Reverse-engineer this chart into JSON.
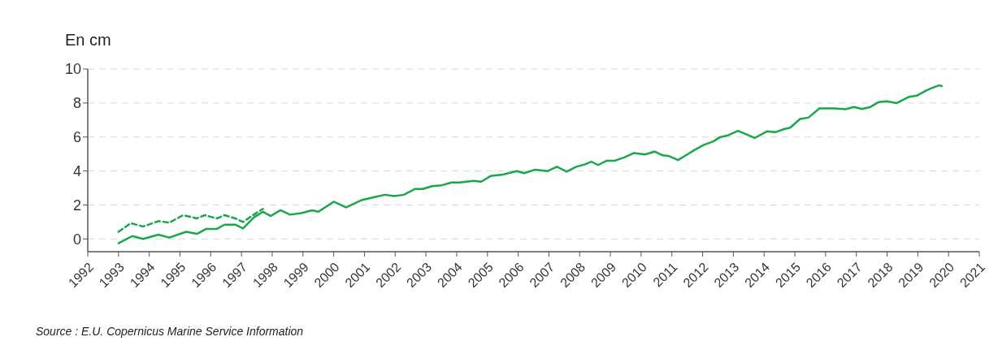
{
  "chart_data": {
    "type": "line",
    "ylabel": "En cm",
    "annotations": [
      "Source : E.U. Copernicus Marine Service Information"
    ],
    "xlim": [
      1992,
      2021
    ],
    "xticks": [
      1992,
      1993,
      1994,
      1995,
      1996,
      1997,
      1998,
      1999,
      2000,
      2001,
      2002,
      2003,
      2004,
      2005,
      2006,
      2007,
      2008,
      2009,
      2010,
      2011,
      2012,
      2013,
      2014,
      2015,
      2016,
      2017,
      2018,
      2019,
      2020,
      2021
    ],
    "ylim": [
      -0.75,
      10
    ],
    "yticks": [
      0,
      2,
      4,
      6,
      8,
      10
    ],
    "grid": "y",
    "series": [
      {
        "color": "#1aa64a",
        "line_style": "solid",
        "x": [
          1993.0,
          1993.45,
          1993.8,
          1994.3,
          1994.65,
          1995.2,
          1995.55,
          1995.85,
          1996.2,
          1996.45,
          1996.8,
          1997.05,
          1997.4,
          1997.7,
          1997.95,
          1998.27,
          1998.58,
          1998.94,
          1999.3,
          1999.5,
          2000.0,
          2000.4,
          2000.9,
          2001.3,
          2001.67,
          2001.97,
          2002.28,
          2002.64,
          2002.9,
          2003.2,
          2003.52,
          2003.83,
          2004.1,
          2004.55,
          2004.8,
          2005.1,
          2005.5,
          2005.95,
          2006.2,
          2006.55,
          2006.95,
          2007.26,
          2007.58,
          2007.89,
          2008.16,
          2008.38,
          2008.6,
          2008.87,
          2009.14,
          2009.45,
          2009.77,
          2010.12,
          2010.44,
          2010.7,
          2010.88,
          2011.2,
          2011.5,
          2011.73,
          2012.03,
          2012.35,
          2012.57,
          2012.84,
          2013.15,
          2013.42,
          2013.69,
          2014.09,
          2014.36,
          2014.63,
          2014.85,
          2015.17,
          2015.44,
          2015.8,
          2016.29,
          2016.65,
          2016.92,
          2017.19,
          2017.46,
          2017.72,
          2017.99,
          2018.3,
          2018.71,
          2018.98,
          2019.29,
          2019.51,
          2019.69,
          2019.78
        ],
        "values": [
          -0.25,
          0.17,
          0.0,
          0.25,
          0.08,
          0.42,
          0.3,
          0.59,
          0.59,
          0.84,
          0.84,
          0.62,
          1.26,
          1.6,
          1.35,
          1.69,
          1.43,
          1.52,
          1.69,
          1.6,
          2.19,
          1.86,
          2.28,
          2.45,
          2.6,
          2.52,
          2.6,
          2.94,
          2.94,
          3.11,
          3.16,
          3.32,
          3.32,
          3.42,
          3.37,
          3.7,
          3.79,
          3.99,
          3.87,
          4.08,
          3.99,
          4.25,
          3.96,
          4.25,
          4.38,
          4.55,
          4.35,
          4.6,
          4.6,
          4.8,
          5.06,
          4.97,
          5.14,
          4.92,
          4.89,
          4.64,
          4.97,
          5.23,
          5.53,
          5.74,
          5.99,
          6.11,
          6.36,
          6.16,
          5.94,
          6.33,
          6.28,
          6.45,
          6.55,
          7.06,
          7.14,
          7.68,
          7.68,
          7.63,
          7.77,
          7.65,
          7.77,
          8.05,
          8.1,
          7.99,
          8.36,
          8.44,
          8.75,
          8.92,
          9.04,
          9.0
        ]
      },
      {
        "color": "#1aa64a",
        "line_style": "dashed",
        "x": [
          1993.0,
          1993.4,
          1993.8,
          1994.3,
          1994.65,
          1995.1,
          1995.55,
          1995.8,
          1996.2,
          1996.45,
          1996.8,
          1997.05,
          1997.4,
          1997.7
        ],
        "values": [
          0.42,
          0.93,
          0.73,
          1.05,
          0.96,
          1.4,
          1.21,
          1.4,
          1.21,
          1.4,
          1.21,
          1.0,
          1.43,
          1.77
        ]
      }
    ]
  }
}
